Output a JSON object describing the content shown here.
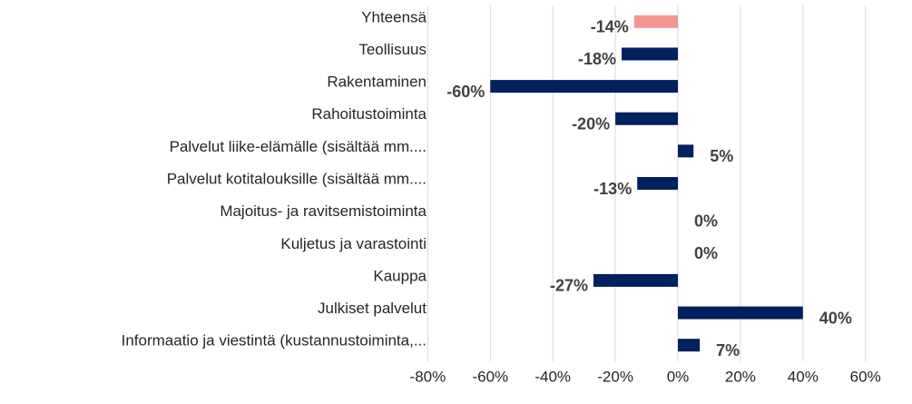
{
  "chart_data": {
    "type": "hbar",
    "categories": [
      "Yhteensä",
      "Teollisuus",
      "Rakentaminen",
      "Rahoitustoiminta",
      "Palvelut liike-elämälle (sisältää mm....",
      "Palvelut kotitalouksille (sisältää mm....",
      "Majoitus- ja ravitsemistoiminta",
      "Kuljetus ja varastointi",
      "Kauppa",
      "Julkiset palvelut",
      "Informaatio ja viestintä (kustannustoiminta,..."
    ],
    "values": [
      -14,
      -18,
      -60,
      -20,
      5,
      -13,
      0,
      0,
      -27,
      40,
      7
    ],
    "value_labels": [
      "-14%",
      "-18%",
      "-60%",
      "-20%",
      "5%",
      "-13%",
      "0%",
      "0%",
      "-27%",
      "40%",
      "7%"
    ],
    "colors": [
      "#f4978e",
      "#002060",
      "#002060",
      "#002060",
      "#002060",
      "#002060",
      "#002060",
      "#002060",
      "#002060",
      "#002060",
      "#002060"
    ],
    "xlim": [
      -80,
      60
    ],
    "xticks": [
      {
        "value": -80,
        "label": "-80%"
      },
      {
        "value": -60,
        "label": "-60%"
      },
      {
        "value": -40,
        "label": "-40%"
      },
      {
        "value": -20,
        "label": "-20%"
      },
      {
        "value": 0,
        "label": "0%"
      },
      {
        "value": 20,
        "label": "20%"
      },
      {
        "value": 40,
        "label": "40%"
      },
      {
        "value": 60,
        "label": "60%"
      }
    ],
    "grid": true
  }
}
